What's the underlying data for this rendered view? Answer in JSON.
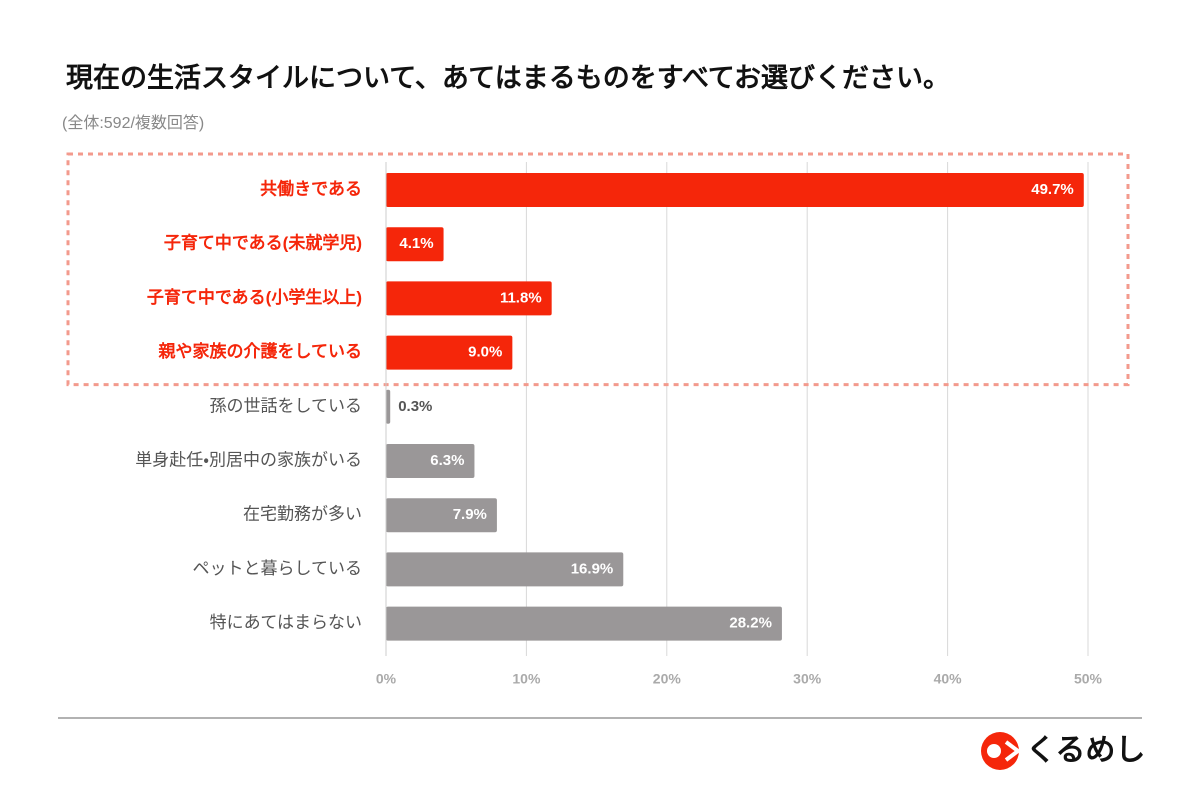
{
  "chart_data": {
    "type": "hbar",
    "title": "現在の生活スタイルについて、あてはまるものをすべてお選びください。",
    "subtitle": "(全体:592/複数回答)",
    "categories": [
      "共働きである",
      "子育て中である(未就学児)",
      "子育て中である(小学生以上)",
      "親や家族の介護をしている",
      "孫の世話をしている",
      "単身赴任・別居中の家族がいる",
      "在宅勤務が多い",
      "ペットと暮らしている",
      "特にあてはまらない"
    ],
    "values": [
      49.7,
      4.1,
      11.8,
      9.0,
      0.3,
      6.3,
      7.9,
      16.9,
      28.2
    ],
    "value_labels": [
      "49.7%",
      "4.1%",
      "11.8%",
      "9.0%",
      "0.3%",
      "6.3%",
      "7.9%",
      "16.9%",
      "28.2%"
    ],
    "color": "#9a9798",
    "highlight_color": "#f5260a",
    "highlight": [
      0,
      1,
      2,
      3
    ],
    "xlim": [
      0,
      50
    ],
    "xticks": [
      {
        "value": 0,
        "label": "0%"
      },
      {
        "value": 10,
        "label": "10%"
      },
      {
        "value": 20,
        "label": "20%"
      },
      {
        "value": 30,
        "label": "30%"
      },
      {
        "value": 40,
        "label": "40%"
      },
      {
        "value": 50,
        "label": "50%"
      }
    ],
    "grid": true
  },
  "logo": "くるめし"
}
